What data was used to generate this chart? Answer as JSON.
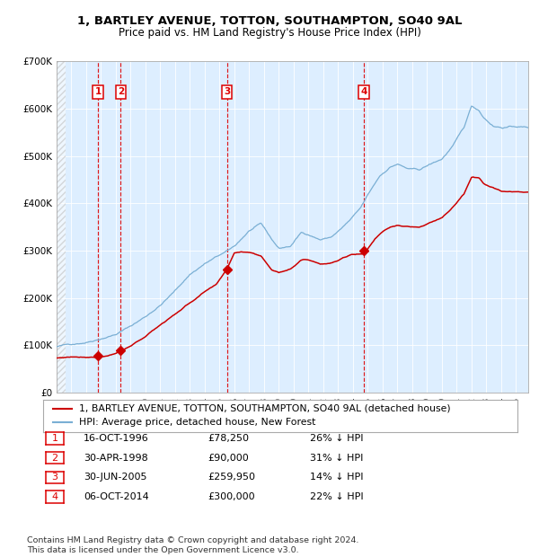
{
  "title": "1, BARTLEY AVENUE, TOTTON, SOUTHAMPTON, SO40 9AL",
  "subtitle": "Price paid vs. HM Land Registry's House Price Index (HPI)",
  "ylim": [
    0,
    700000
  ],
  "yticks": [
    0,
    100000,
    200000,
    300000,
    400000,
    500000,
    600000,
    700000
  ],
  "ytick_labels": [
    "£0",
    "£100K",
    "£200K",
    "£300K",
    "£400K",
    "£500K",
    "£600K",
    "£700K"
  ],
  "xlim_start": 1994.0,
  "xlim_end": 2025.83,
  "sale_dates": [
    1996.79,
    1998.33,
    2005.49,
    2014.76
  ],
  "sale_prices": [
    78250,
    90000,
    259950,
    300000
  ],
  "sale_labels": [
    "1",
    "2",
    "3",
    "4"
  ],
  "vline_color": "#dd0000",
  "sale_marker_color": "#cc0000",
  "hpi_line_color": "#7aafd4",
  "price_line_color": "#cc0000",
  "legend_label_price": "1, BARTLEY AVENUE, TOTTON, SOUTHAMPTON, SO40 9AL (detached house)",
  "legend_label_hpi": "HPI: Average price, detached house, New Forest",
  "table_rows": [
    [
      "1",
      "16-OCT-1996",
      "£78,250",
      "26% ↓ HPI"
    ],
    [
      "2",
      "30-APR-1998",
      "£90,000",
      "31% ↓ HPI"
    ],
    [
      "3",
      "30-JUN-2005",
      "£259,950",
      "14% ↓ HPI"
    ],
    [
      "4",
      "06-OCT-2014",
      "£300,000",
      "22% ↓ HPI"
    ]
  ],
  "footer_text": "Contains HM Land Registry data © Crown copyright and database right 2024.\nThis data is licensed under the Open Government Licence v3.0.",
  "title_fontsize": 9.5,
  "subtitle_fontsize": 8.5,
  "tick_fontsize": 7.5,
  "legend_fontsize": 7.8,
  "table_fontsize": 8.0
}
